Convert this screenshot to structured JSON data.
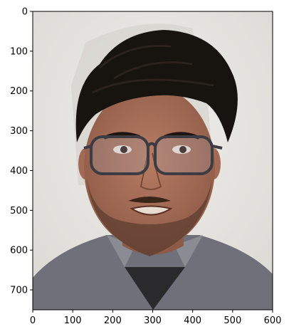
{
  "chart_data": {
    "type": "image",
    "title": "",
    "xlabel": "",
    "ylabel": "",
    "xlim": [
      0,
      600
    ],
    "ylim": [
      750,
      0
    ],
    "x_ticks": [
      0,
      100,
      200,
      300,
      400,
      500,
      600
    ],
    "y_ticks": [
      0,
      100,
      200,
      300,
      400,
      500,
      600,
      700
    ],
    "x_tick_labels": [
      "0",
      "100",
      "200",
      "300",
      "400",
      "500",
      "600"
    ],
    "y_tick_labels": [
      "0",
      "100",
      "200",
      "300",
      "400",
      "500",
      "600",
      "700"
    ],
    "image_content": "portrait photo of a young man with dark hair, glasses and a beard, grey collared shirt, light wall background",
    "colors": {
      "background_wall": "#e6e4df",
      "hair": "#17130f",
      "skin": "#a8705a",
      "shirt": "#6f7079",
      "spine": "#000000"
    }
  }
}
